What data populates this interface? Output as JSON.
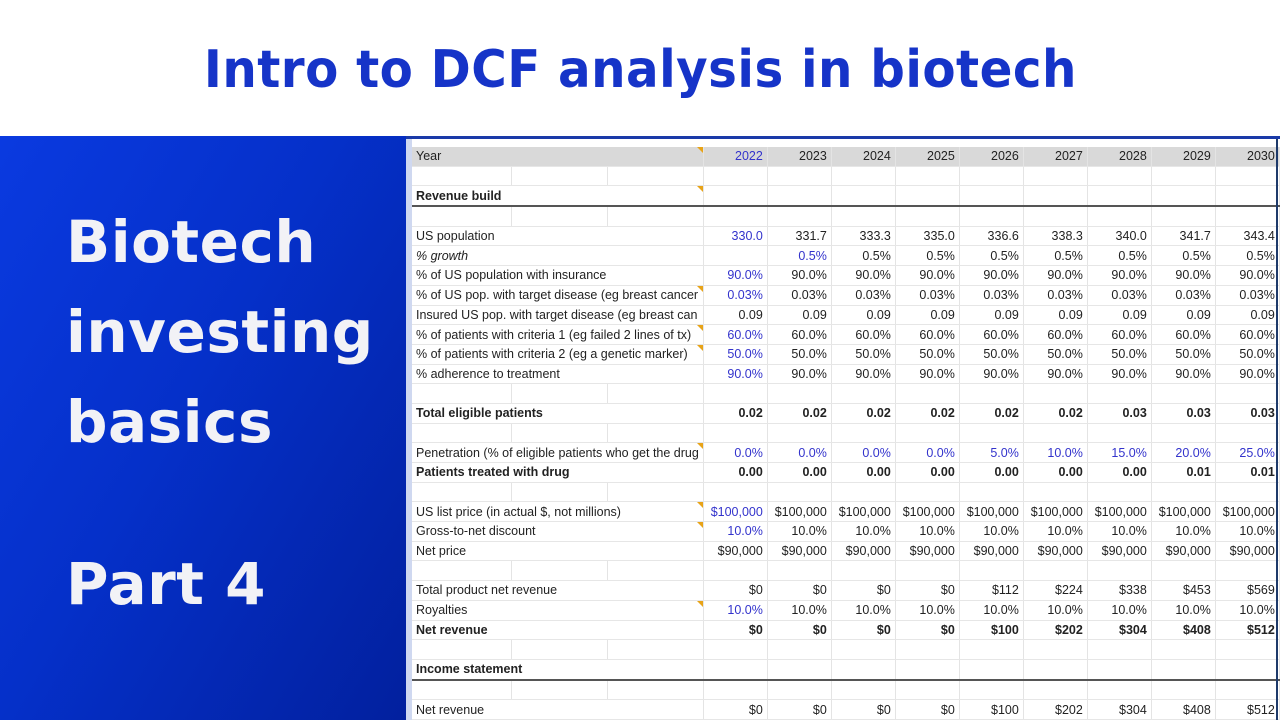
{
  "title": "Intro to DCF analysis in biotech",
  "left_panel": {
    "lines": [
      "Biotech",
      "investing",
      "basics",
      "Part 4"
    ]
  },
  "colors": {
    "title_blue": "#1634c8",
    "panel_blue": "#0530c9",
    "input_blue": "#3333cc",
    "header_gray": "#d9d9d9",
    "note_orange": "#e8a317"
  },
  "sheet": {
    "years": [
      "2022",
      "2023",
      "2024",
      "2025",
      "2026",
      "2027",
      "2028",
      "2029",
      "2030"
    ],
    "rows": [
      {
        "type": "header",
        "label": "Year",
        "note": true
      },
      {
        "type": "blank"
      },
      {
        "type": "section",
        "label": "Revenue build",
        "note": true
      },
      {
        "type": "blank"
      },
      {
        "label": "US population",
        "values": [
          "330.0",
          "331.7",
          "333.3",
          "335.0",
          "336.6",
          "338.3",
          "340.0",
          "341.7",
          "343.4"
        ],
        "first_blue": true
      },
      {
        "label": "% growth",
        "italic": true,
        "values": [
          "",
          "0.5%",
          "0.5%",
          "0.5%",
          "0.5%",
          "0.5%",
          "0.5%",
          "0.5%",
          "0.5%"
        ],
        "second_blue": true
      },
      {
        "label": "% of US population with insurance",
        "values": [
          "90.0%",
          "90.0%",
          "90.0%",
          "90.0%",
          "90.0%",
          "90.0%",
          "90.0%",
          "90.0%",
          "90.0%"
        ],
        "first_blue": true
      },
      {
        "label": "% of US pop. with target disease (eg breast cancer",
        "note": true,
        "values": [
          "0.03%",
          "0.03%",
          "0.03%",
          "0.03%",
          "0.03%",
          "0.03%",
          "0.03%",
          "0.03%",
          "0.03%"
        ],
        "first_blue": true
      },
      {
        "label": "Insured US pop. with target disease (eg breast can",
        "values": [
          "0.09",
          "0.09",
          "0.09",
          "0.09",
          "0.09",
          "0.09",
          "0.09",
          "0.09",
          "0.09"
        ]
      },
      {
        "label": "% of patients with criteria 1 (eg failed 2 lines of tx)",
        "note": true,
        "values": [
          "60.0%",
          "60.0%",
          "60.0%",
          "60.0%",
          "60.0%",
          "60.0%",
          "60.0%",
          "60.0%",
          "60.0%"
        ],
        "first_blue": true
      },
      {
        "label": "% of patients with criteria 2 (eg a genetic marker)",
        "note": true,
        "values": [
          "50.0%",
          "50.0%",
          "50.0%",
          "50.0%",
          "50.0%",
          "50.0%",
          "50.0%",
          "50.0%",
          "50.0%"
        ],
        "first_blue": true
      },
      {
        "label": "% adherence to treatment",
        "values": [
          "90.0%",
          "90.0%",
          "90.0%",
          "90.0%",
          "90.0%",
          "90.0%",
          "90.0%",
          "90.0%",
          "90.0%"
        ],
        "first_blue": true
      },
      {
        "type": "blank"
      },
      {
        "label": "Total eligible patients",
        "bold": true,
        "values": [
          "0.02",
          "0.02",
          "0.02",
          "0.02",
          "0.02",
          "0.02",
          "0.03",
          "0.03",
          "0.03"
        ]
      },
      {
        "type": "blank"
      },
      {
        "label": "Penetration (% of eligible patients who get the drug",
        "note": true,
        "values": [
          "0.0%",
          "0.0%",
          "0.0%",
          "0.0%",
          "5.0%",
          "10.0%",
          "15.0%",
          "20.0%",
          "25.0%"
        ],
        "all_blue": true
      },
      {
        "label": "Patients treated with drug",
        "bold": true,
        "values": [
          "0.00",
          "0.00",
          "0.00",
          "0.00",
          "0.00",
          "0.00",
          "0.00",
          "0.01",
          "0.01"
        ]
      },
      {
        "type": "blank"
      },
      {
        "label": "US list price (in actual $, not millions)",
        "note": true,
        "values": [
          "$100,000",
          "$100,000",
          "$100,000",
          "$100,000",
          "$100,000",
          "$100,000",
          "$100,000",
          "$100,000",
          "$100,000"
        ],
        "first_blue": true
      },
      {
        "label": "Gross-to-net discount",
        "note": true,
        "values": [
          "10.0%",
          "10.0%",
          "10.0%",
          "10.0%",
          "10.0%",
          "10.0%",
          "10.0%",
          "10.0%",
          "10.0%"
        ],
        "first_blue": true
      },
      {
        "label": "Net price",
        "values": [
          "$90,000",
          "$90,000",
          "$90,000",
          "$90,000",
          "$90,000",
          "$90,000",
          "$90,000",
          "$90,000",
          "$90,000"
        ]
      },
      {
        "type": "blank"
      },
      {
        "label": "Total product net revenue",
        "values": [
          "$0",
          "$0",
          "$0",
          "$0",
          "$112",
          "$224",
          "$338",
          "$453",
          "$569"
        ]
      },
      {
        "label": "Royalties",
        "note": true,
        "values": [
          "10.0%",
          "10.0%",
          "10.0%",
          "10.0%",
          "10.0%",
          "10.0%",
          "10.0%",
          "10.0%",
          "10.0%"
        ],
        "first_blue": true
      },
      {
        "label": "Net revenue",
        "bold": true,
        "values": [
          "$0",
          "$0",
          "$0",
          "$0",
          "$100",
          "$202",
          "$304",
          "$408",
          "$512"
        ]
      },
      {
        "type": "blank"
      },
      {
        "type": "section",
        "label": "Income statement"
      },
      {
        "type": "blank"
      },
      {
        "label": "Net revenue",
        "values": [
          "$0",
          "$0",
          "$0",
          "$0",
          "$100",
          "$202",
          "$304",
          "$408",
          "$512"
        ]
      }
    ]
  }
}
